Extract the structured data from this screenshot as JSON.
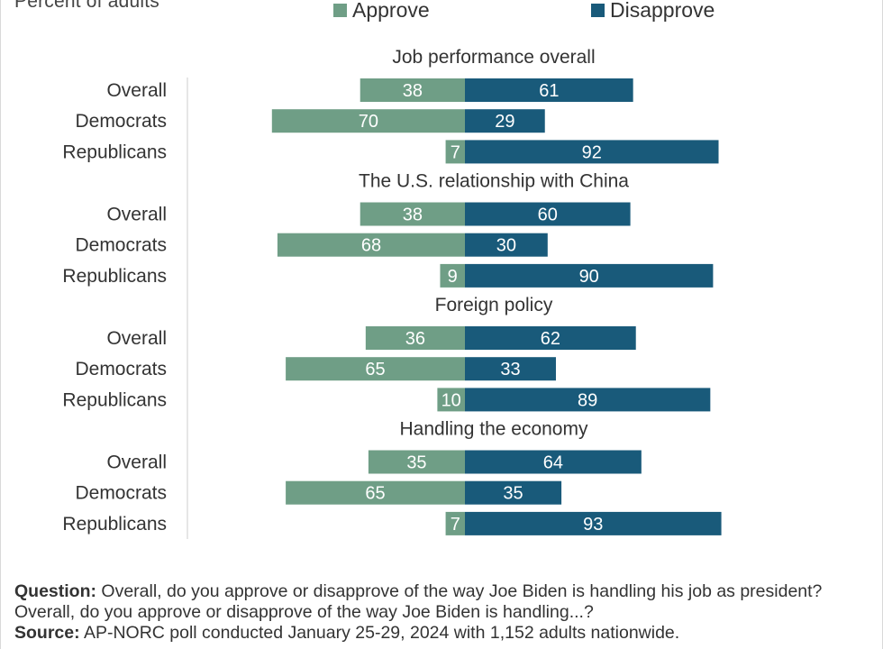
{
  "subtitle": "Percent of adults",
  "legend": {
    "approve": "Approve",
    "disapprove": "Disapprove",
    "approve_color": "#6f9e86",
    "disapprove_color": "#195a7a"
  },
  "chart_data": {
    "type": "bar",
    "orientation": "horizontal-diverging",
    "series": [
      {
        "name": "Approve",
        "color": "#6f9e86"
      },
      {
        "name": "Disapprove",
        "color": "#195a7a"
      }
    ],
    "groups": [
      {
        "title": "Job performance overall",
        "rows": [
          {
            "label": "Overall",
            "approve": 38,
            "disapprove": 61
          },
          {
            "label": "Democrats",
            "approve": 70,
            "disapprove": 29
          },
          {
            "label": "Republicans",
            "approve": 7,
            "disapprove": 92
          }
        ]
      },
      {
        "title": "The U.S. relationship with China",
        "rows": [
          {
            "label": "Overall",
            "approve": 38,
            "disapprove": 60
          },
          {
            "label": "Democrats",
            "approve": 68,
            "disapprove": 30
          },
          {
            "label": "Republicans",
            "approve": 9,
            "disapprove": 90
          }
        ]
      },
      {
        "title": "Foreign policy",
        "rows": [
          {
            "label": "Overall",
            "approve": 36,
            "disapprove": 62
          },
          {
            "label": "Democrats",
            "approve": 65,
            "disapprove": 33
          },
          {
            "label": "Republicans",
            "approve": 10,
            "disapprove": 89
          }
        ]
      },
      {
        "title": "Handling the economy",
        "rows": [
          {
            "label": "Overall",
            "approve": 35,
            "disapprove": 64
          },
          {
            "label": "Democrats",
            "approve": 65,
            "disapprove": 35
          },
          {
            "label": "Republicans",
            "approve": 7,
            "disapprove": 93
          }
        ]
      }
    ]
  },
  "footer": {
    "question_label": "Question:",
    "question_text": " Overall, do you approve or disapprove of the way Joe Biden is handling his job as president? Overall, do you approve or disapprove of the way Joe Biden is handling...?",
    "source_label": "Source:",
    "source_text": " AP-NORC poll conducted January 25-29, 2024 with 1,152 adults nationwide."
  }
}
